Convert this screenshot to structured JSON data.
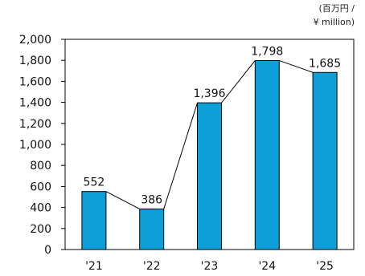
{
  "chart_data": {
    "type": "bar",
    "title": "",
    "xlabel": "",
    "ylabel": "",
    "unit_line1": "(百万円 /",
    "unit_line2": "¥ million)",
    "categories": [
      "'21",
      "'22",
      "'23",
      "'24",
      "'25"
    ],
    "values": [
      552,
      386,
      1396,
      1798,
      1685
    ],
    "data_labels": [
      "552",
      "386",
      "1,396",
      "1,798",
      "1,685"
    ],
    "ylim": [
      0,
      2000
    ],
    "yticks": [
      0,
      200,
      400,
      600,
      800,
      1000,
      1200,
      1400,
      1600,
      1800,
      2000
    ],
    "ytick_labels": [
      "0",
      "200",
      "400",
      "600",
      "800",
      "1,000",
      "1,200",
      "1,400",
      "1,600",
      "1,800",
      "2,000"
    ],
    "grid": false,
    "legend": "none",
    "overlay_line": true,
    "colors": {
      "bar_fill": "#0E9FD9",
      "bar_stroke": "#000000",
      "line": "#000000",
      "axis": "#000000"
    }
  }
}
